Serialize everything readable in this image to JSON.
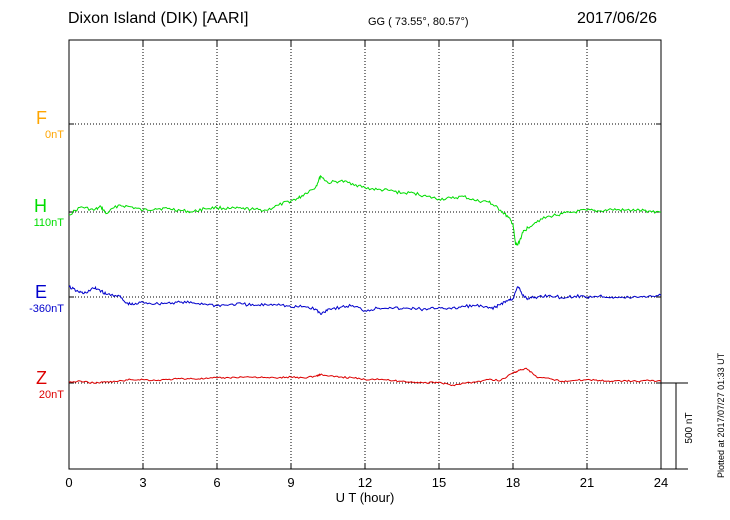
{
  "header": {
    "station": "Dixon Island (DIK)  [AARI]",
    "coords": "GG ( 73.55°,  80.57°)",
    "date": "2017/06/26"
  },
  "plotted_note": "Plotted at 2017/07/27 01:33 UT",
  "scale_label": "500 nT",
  "channels": [
    {
      "key": "F",
      "name": "F",
      "baseline": "0nT",
      "color": "#ffa500"
    },
    {
      "key": "H",
      "name": "H",
      "baseline": "110nT",
      "color": "#00dd00"
    },
    {
      "key": "E",
      "name": "E",
      "baseline": "-360nT",
      "color": "#0000cc"
    },
    {
      "key": "Z",
      "name": "Z",
      "baseline": "20nT",
      "color": "#dd0000"
    }
  ],
  "chart_data": {
    "type": "line",
    "xlabel": "U T (hour)",
    "xlim": [
      0,
      24
    ],
    "xticks": [
      "0",
      "3",
      "6",
      "9",
      "12",
      "15",
      "18",
      "21",
      "24"
    ],
    "ylabel": "",
    "scale_bar_nT": 500,
    "grid": true,
    "series": [
      {
        "name": "H",
        "color": "#00dd00",
        "x": [
          0,
          0.5,
          1,
          1.3,
          1.5,
          2,
          2.5,
          3,
          3.5,
          4,
          4.5,
          5,
          5.5,
          6,
          6.5,
          7,
          7.5,
          8,
          8.5,
          9,
          9.3,
          9.6,
          10,
          10.2,
          10.5,
          11,
          11.5,
          12,
          12.5,
          13,
          13.5,
          14,
          14.5,
          15,
          15.5,
          16,
          16.5,
          17,
          17.2,
          17.5,
          17.8,
          18,
          18.1,
          18.2,
          18.4,
          18.6,
          19,
          19.5,
          20,
          20.5,
          21,
          21.5,
          22,
          22.5,
          23,
          23.5,
          24
        ],
        "y": [
          95,
          140,
          120,
          140,
          100,
          150,
          140,
          120,
          130,
          130,
          120,
          110,
          130,
          135,
          130,
          130,
          125,
          120,
          150,
          175,
          190,
          220,
          255,
          320,
          280,
          290,
          275,
          250,
          240,
          235,
          220,
          220,
          200,
          185,
          190,
          200,
          175,
          170,
          150,
          120,
          80,
          40,
          -80,
          -80,
          -10,
          20,
          60,
          85,
          100,
          110,
          120,
          115,
          125,
          120,
          120,
          115,
          110
        ]
      },
      {
        "name": "E",
        "color": "#0000cc",
        "x": [
          0,
          0.3,
          0.6,
          1,
          1.2,
          1.5,
          2,
          2.3,
          2.6,
          3,
          3.5,
          4,
          4.5,
          5,
          5.5,
          6,
          6.5,
          7,
          7.5,
          8,
          8.5,
          9,
          9.5,
          10,
          10.2,
          10.5,
          11,
          11.5,
          12,
          12.5,
          13,
          13.5,
          14,
          14.5,
          15,
          15.5,
          16,
          16.5,
          17,
          17.3,
          17.5,
          17.8,
          18,
          18.2,
          18.4,
          18.6,
          19,
          19.5,
          20,
          20.5,
          21,
          21.5,
          22,
          22.5,
          23,
          23.5,
          24
        ],
        "y": [
          -300,
          -325,
          -340,
          -310,
          -315,
          -345,
          -350,
          -395,
          -405,
          -390,
          -400,
          -395,
          -390,
          -395,
          -400,
          -410,
          -405,
          -400,
          -410,
          -405,
          -400,
          -420,
          -415,
          -430,
          -460,
          -430,
          -420,
          -410,
          -440,
          -425,
          -420,
          -430,
          -425,
          -435,
          -420,
          -430,
          -415,
          -410,
          -425,
          -420,
          -400,
          -380,
          -370,
          -300,
          -350,
          -370,
          -360,
          -350,
          -365,
          -355,
          -360,
          -355,
          -360,
          -365,
          -360,
          -355,
          -350
        ]
      },
      {
        "name": "Z",
        "color": "#dd0000",
        "x": [
          0,
          0.5,
          1,
          1.5,
          2,
          2.5,
          3,
          3.5,
          4,
          4.5,
          5,
          5.5,
          6,
          6.5,
          7,
          7.5,
          8,
          8.5,
          9,
          9.5,
          10,
          10.2,
          10.5,
          11,
          11.5,
          12,
          12.5,
          13,
          13.5,
          14,
          14.5,
          15,
          15.5,
          16,
          16.5,
          17,
          17.5,
          18,
          18.2,
          18.5,
          18.8,
          19,
          19.5,
          20,
          20.5,
          21,
          21.5,
          22,
          22.5,
          23,
          23.5,
          24
        ],
        "y": [
          25,
          30,
          20,
          25,
          30,
          40,
          40,
          35,
          40,
          45,
          45,
          45,
          50,
          50,
          55,
          55,
          50,
          50,
          55,
          50,
          60,
          70,
          60,
          55,
          50,
          40,
          45,
          35,
          30,
          25,
          20,
          25,
          5,
          20,
          25,
          40,
          35,
          80,
          90,
          105,
          75,
          50,
          45,
          30,
          35,
          40,
          35,
          30,
          35,
          30,
          35,
          30
        ]
      }
    ]
  }
}
